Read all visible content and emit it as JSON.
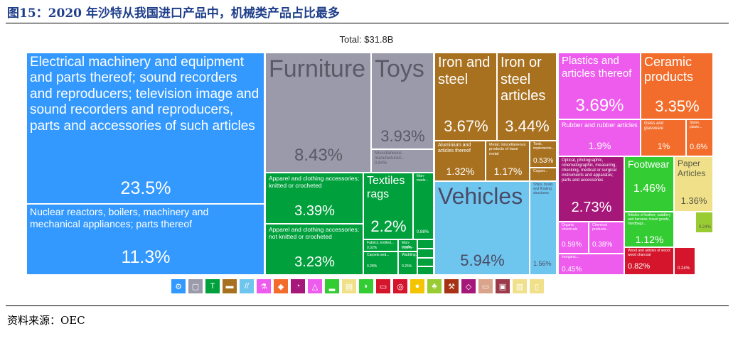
{
  "figure": {
    "title": "图15：2020 年沙特从我国进口产品中，机械类产品占比最多",
    "source": "资料来源：OEC"
  },
  "chart_data": {
    "type": "treemap",
    "title": "Total: $31.8B",
    "items": [
      {
        "label": "Electrical machinery and equipment and parts thereof; sound recorders and reproducers; television image and sound recorders and reproducers, parts and accessories of such articles",
        "value": 23.5,
        "value_label": "23.5%",
        "color": "#3399ff"
      },
      {
        "label": "Nuclear reactors, boilers, machinery and mechanical appliances; parts thereof",
        "value": 11.3,
        "value_label": "11.3%",
        "color": "#3399ff"
      },
      {
        "label": "Furniture",
        "value": 8.43,
        "value_label": "8.43%",
        "color": "#9a9aab"
      },
      {
        "label": "Toys",
        "value": 3.93,
        "value_label": "3.93%",
        "color": "#9a9aab"
      },
      {
        "label": "Miscellaneous manufactured...",
        "value": 0.84,
        "value_label": "0.84%",
        "color": "#9a9aab"
      },
      {
        "label": "Apparel and clothing accessories; knitted or crocheted",
        "value": 3.39,
        "value_label": "3.39%",
        "color": "#00a03c"
      },
      {
        "label": "Apparel and clothing accessories; not knitted or crocheted",
        "value": 3.23,
        "value_label": "3.23%",
        "color": "#00a03c"
      },
      {
        "label": "Textiles rags",
        "value": 2.2,
        "value_label": "2.2%",
        "color": "#00a03c"
      },
      {
        "label": "Man-made...",
        "value": 0.88,
        "value_label": "0.88%",
        "color": "#00a03c"
      },
      {
        "label": "Fabrics, knitted...",
        "value": 0.32,
        "value_label": "0.32%",
        "color": "#00a03c"
      },
      {
        "label": "Man-made...",
        "value": 0.31,
        "value_label": "0.31%",
        "color": "#00a03c"
      },
      {
        "label": "Carpets and...",
        "value": 0.28,
        "value_label": "0.28%",
        "color": "#00a03c"
      },
      {
        "label": "Wadding...",
        "value": 0.25,
        "value_label": "0.25%",
        "color": "#00a03c"
      },
      {
        "label": "",
        "value": 0.2,
        "value_label": "",
        "color": "#00a03c"
      },
      {
        "label": "",
        "value": 0.2,
        "value_label": "",
        "color": "#00a03c"
      },
      {
        "label": "",
        "value": 0.15,
        "value_label": "",
        "color": "#00a03c"
      },
      {
        "label": "",
        "value": 0.15,
        "value_label": "",
        "color": "#00a03c"
      },
      {
        "label": "Iron and steel",
        "value": 3.67,
        "value_label": "3.67%",
        "color": "#a8711f"
      },
      {
        "label": "Iron or steel articles",
        "value": 3.44,
        "value_label": "3.44%",
        "color": "#a8711f"
      },
      {
        "label": "Aluminium and articles thereof",
        "value": 1.32,
        "value_label": "1.32%",
        "color": "#a8711f"
      },
      {
        "label": "Metal; miscellaneous products of base metal",
        "value": 1.17,
        "value_label": "1.17%",
        "color": "#a8711f"
      },
      {
        "label": "Tools, implements...",
        "value": 0.53,
        "value_label": "0.53%",
        "color": "#a8711f"
      },
      {
        "label": "Copper...",
        "value": 0.3,
        "value_label": "",
        "color": "#a8711f"
      },
      {
        "label": "",
        "value": 0.1,
        "value_label": "",
        "color": "#a8711f"
      },
      {
        "label": "Vehicles",
        "value": 5.94,
        "value_label": "5.94%",
        "color": "#6ec6ee"
      },
      {
        "label": "Ships, boats and floating structures",
        "value": 1.56,
        "value_label": "1.56%",
        "color": "#6ec6ee"
      },
      {
        "label": "Plastics and articles thereof",
        "value": 3.69,
        "value_label": "3.69%",
        "color": "#ee5cee"
      },
      {
        "label": "Rubber and rubber articles",
        "value": 1.9,
        "value_label": "1.9%",
        "color": "#ee5cee"
      },
      {
        "label": "Ceramic products",
        "value": 3.35,
        "value_label": "3.35%",
        "color": "#f26d2b"
      },
      {
        "label": "Glass and glassware",
        "value": 1.0,
        "value_label": "1%",
        "color": "#f26d2b"
      },
      {
        "label": "Stone, plaste...",
        "value": 0.6,
        "value_label": "0.6%",
        "color": "#f26d2b"
      },
      {
        "label": "Optical, photographic, cinematographic, measuring, checking, medical or surgical instruments and apparatus; parts and accessories",
        "value": 2.73,
        "value_label": "2.73%",
        "color": "#a6177a"
      },
      {
        "label": "Organic chemicals",
        "value": 0.59,
        "value_label": "0.59%",
        "color": "#ee5cee"
      },
      {
        "label": "Chemical products...",
        "value": 0.38,
        "value_label": "0.38%",
        "color": "#ee5cee"
      },
      {
        "label": "Inorganic...",
        "value": 0.45,
        "value_label": "0.45%",
        "color": "#ee5cee"
      },
      {
        "label": "Footwear",
        "value": 1.46,
        "value_label": "1.46%",
        "color": "#33cc33"
      },
      {
        "label": "Paper Articles",
        "value": 1.36,
        "value_label": "1.36%",
        "color": "#f0e08a"
      },
      {
        "label": "Articles of leather; saddlery and harness; travel goods, handbags...",
        "value": 1.12,
        "value_label": "1.12%",
        "color": "#33cc33"
      },
      {
        "label": "Wood and articles of wood; wood charcoal",
        "value": 0.82,
        "value_label": "0.82%",
        "color": "#d4152b"
      },
      {
        "label": "",
        "value": 0.24,
        "value_label": "0.24%",
        "color": "#d4152b"
      },
      {
        "label": "",
        "value": 0.24,
        "value_label": "0.24%",
        "color": "#99cc33"
      }
    ]
  },
  "legend_icons": [
    {
      "name": "machines-icon",
      "color": "#3399ff",
      "glyph": "⚙"
    },
    {
      "name": "miscellaneous-icon",
      "color": "#9a9aab",
      "glyph": "▢"
    },
    {
      "name": "textiles-icon",
      "color": "#00a03c",
      "glyph": "T"
    },
    {
      "name": "metals-icon",
      "color": "#a8711f",
      "glyph": "▬"
    },
    {
      "name": "transportation-icon",
      "color": "#6ec6ee",
      "glyph": "//"
    },
    {
      "name": "chemical-products-icon",
      "color": "#ee5cee",
      "glyph": "⚗"
    },
    {
      "name": "stone-and-glass-icon",
      "color": "#f26d2b",
      "glyph": "◆"
    },
    {
      "name": "instruments-icon",
      "color": "#a6177a",
      "glyph": "◔"
    },
    {
      "name": "chemicals-icon",
      "color": "#ee5cee",
      "glyph": "△"
    },
    {
      "name": "footwear-icon",
      "color": "#33cc33",
      "glyph": "▂"
    },
    {
      "name": "paper-icon",
      "color": "#f0e08a",
      "glyph": "▤"
    },
    {
      "name": "animal-hides-icon",
      "color": "#33cc33",
      "glyph": "◗"
    },
    {
      "name": "wood-products-icon",
      "color": "#d4152b",
      "glyph": "▭"
    },
    {
      "name": "plastics-icon",
      "color": "#d4152b",
      "glyph": "◎"
    },
    {
      "name": "foodstuffs-icon",
      "color": "#f5c400",
      "glyph": "●"
    },
    {
      "name": "vegetable-products-icon",
      "color": "#99cc33",
      "glyph": "♣"
    },
    {
      "name": "mineral-products-icon",
      "color": "#a83214",
      "glyph": "⚒"
    },
    {
      "name": "precious-metals-icon",
      "color": "#a6177a",
      "glyph": "◇"
    },
    {
      "name": "animal-products-icon",
      "color": "#d9a38c",
      "glyph": "▭"
    },
    {
      "name": "arts-icon",
      "color": "#9a3a4a",
      "glyph": "▣"
    },
    {
      "name": "weapons-icon",
      "color": "#f0e08a",
      "glyph": "▥"
    },
    {
      "name": "animal-and-vegetable-oils-icon",
      "color": "#f0e08a",
      "glyph": "▯"
    }
  ]
}
